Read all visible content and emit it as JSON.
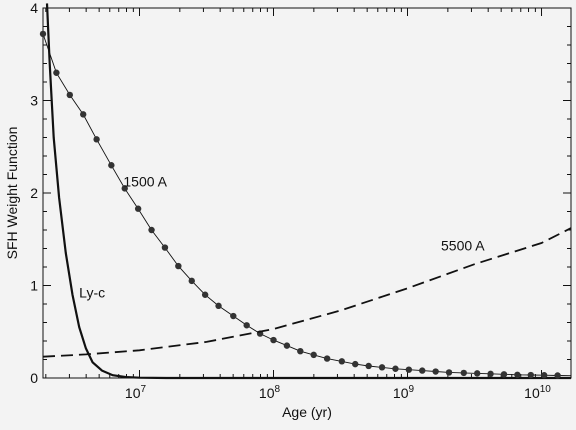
{
  "chart_data": {
    "type": "line",
    "title": "",
    "xlabel": "Age (yr)",
    "ylabel": "SFH Weight Function",
    "xscale": "log",
    "xlim_log10": [
      6.28,
      10.22
    ],
    "ylim": [
      0,
      4
    ],
    "yticks": [
      {
        "value": 0,
        "label": "0"
      },
      {
        "value": 1,
        "label": "1"
      },
      {
        "value": 2,
        "label": "2"
      },
      {
        "value": 3,
        "label": "3"
      },
      {
        "value": 4,
        "label": "4"
      }
    ],
    "xticks": [
      {
        "log10": 7,
        "base": "10",
        "exp": "7"
      },
      {
        "log10": 8,
        "base": "10",
        "exp": "8"
      },
      {
        "log10": 9,
        "base": "10",
        "exp": "9"
      },
      {
        "log10": 10,
        "base": "10",
        "exp": "10"
      }
    ],
    "grid": false,
    "legend": "none",
    "series": [
      {
        "name": "Ly-c",
        "style": "thick-solid",
        "points": [
          [
            6.31,
            4.05
          ],
          [
            6.33,
            3.4
          ],
          [
            6.36,
            2.6
          ],
          [
            6.4,
            1.95
          ],
          [
            6.45,
            1.35
          ],
          [
            6.5,
            0.9
          ],
          [
            6.55,
            0.55
          ],
          [
            6.6,
            0.32
          ],
          [
            6.65,
            0.17
          ],
          [
            6.72,
            0.08
          ],
          [
            6.8,
            0.03
          ],
          [
            6.9,
            0.01
          ],
          [
            7.0,
            0.003
          ],
          [
            7.2,
            0.0
          ],
          [
            10.22,
            0.0
          ]
        ]
      },
      {
        "name": "1500 A",
        "style": "thin-solid-dots",
        "points": [
          [
            6.28,
            3.72
          ],
          [
            6.38,
            3.3
          ],
          [
            6.48,
            3.06
          ],
          [
            6.58,
            2.85
          ],
          [
            6.68,
            2.58
          ],
          [
            6.79,
            2.3
          ],
          [
            6.89,
            2.05
          ],
          [
            6.99,
            1.83
          ],
          [
            7.09,
            1.6
          ],
          [
            7.19,
            1.41
          ],
          [
            7.29,
            1.21
          ],
          [
            7.39,
            1.05
          ],
          [
            7.49,
            0.9
          ],
          [
            7.59,
            0.78
          ],
          [
            7.7,
            0.67
          ],
          [
            7.8,
            0.57
          ],
          [
            7.9,
            0.48
          ],
          [
            8.0,
            0.41
          ],
          [
            8.1,
            0.35
          ],
          [
            8.2,
            0.29
          ],
          [
            8.3,
            0.25
          ],
          [
            8.4,
            0.21
          ],
          [
            8.51,
            0.18
          ],
          [
            8.61,
            0.15
          ],
          [
            8.71,
            0.13
          ],
          [
            8.81,
            0.115
          ],
          [
            8.91,
            0.1
          ],
          [
            9.01,
            0.09
          ],
          [
            9.11,
            0.08
          ],
          [
            9.21,
            0.07
          ],
          [
            9.31,
            0.06
          ],
          [
            9.42,
            0.055
          ],
          [
            9.52,
            0.05
          ],
          [
            9.62,
            0.045
          ],
          [
            9.72,
            0.04
          ],
          [
            9.82,
            0.035
          ],
          [
            9.92,
            0.032
          ],
          [
            10.02,
            0.03
          ],
          [
            10.12,
            0.027
          ],
          [
            10.22,
            0.025
          ]
        ]
      },
      {
        "name": "5500 A",
        "style": "dashed",
        "points": [
          [
            6.28,
            0.23
          ],
          [
            6.6,
            0.255
          ],
          [
            7.0,
            0.3
          ],
          [
            7.5,
            0.39
          ],
          [
            8.0,
            0.53
          ],
          [
            8.5,
            0.73
          ],
          [
            9.0,
            0.97
          ],
          [
            9.5,
            1.23
          ],
          [
            10.0,
            1.46
          ],
          [
            10.22,
            1.62
          ]
        ]
      }
    ],
    "annotations": [
      {
        "text": "1500 A",
        "x_log10": 6.88,
        "y": 2.07
      },
      {
        "text": "5500 A",
        "x_log10": 9.25,
        "y": 1.38
      },
      {
        "text": "Ly-c",
        "x_log10": 6.55,
        "y": 0.87
      }
    ]
  }
}
